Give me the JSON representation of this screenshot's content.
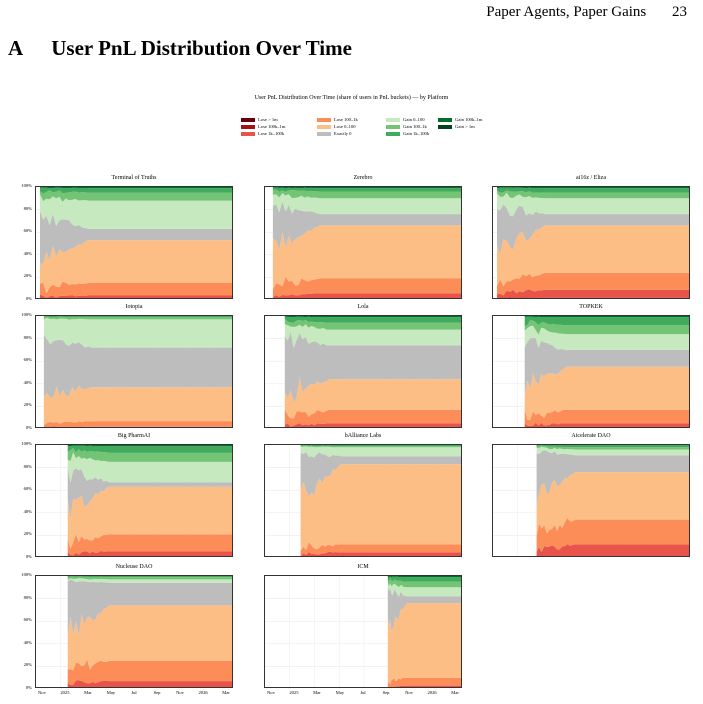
{
  "header": {
    "running_title": "Paper Agents, Paper Gains",
    "page_number": "23"
  },
  "section": {
    "letter": "A",
    "title": "User PnL Distribution Over Time"
  },
  "figure": {
    "title": "User PnL Distribution Over Time (share of users in PnL buckets) — by Platform"
  },
  "legend": {
    "items": [
      {
        "label": "Lose > 1m",
        "color": "#67000d"
      },
      {
        "label": "Lose 100k–1m",
        "color": "#a50f15"
      },
      {
        "label": "Lose 1k–100k",
        "color": "#e8534a"
      },
      {
        "label": "Lose 100–1k",
        "color": "#fc8d59"
      },
      {
        "label": "Lose 0–100",
        "color": "#fdbe85"
      },
      {
        "label": "Exactly 0",
        "color": "#bdbdbd"
      },
      {
        "label": "Gain 0–100",
        "color": "#c7e9c0"
      },
      {
        "label": "Gain 100–1k",
        "color": "#74c476"
      },
      {
        "label": "Gain 1k–100k",
        "color": "#41ab5d"
      },
      {
        "label": "Gain 100k–1m",
        "color": "#006d2c"
      },
      {
        "label": "Gain > 1m",
        "color": "#00441b"
      }
    ]
  },
  "chart_data": {
    "type": "area",
    "x_ticks": [
      "Nov",
      "2025",
      "Mar",
      "May",
      "Jul",
      "Sep",
      "Nov",
      "2026",
      "Mar"
    ],
    "y_ticks": [
      "0%",
      "20%",
      "40%",
      "60%",
      "80%",
      "100%"
    ],
    "ylim": [
      0,
      100
    ],
    "buckets": [
      "Lose > 1m",
      "Lose 100k–1m",
      "Lose 1k–100k",
      "Lose 100–1k",
      "Lose 0–100",
      "Exactly 0",
      "Gain 0–100",
      "Gain 100–1k",
      "Gain 1k–100k",
      "Gain 100k–1m",
      "Gain > 1m"
    ],
    "panels": [
      {
        "title": "Terminal of Truths",
        "start": 0.02,
        "end": 0.9,
        "shares": [
          0,
          1,
          3,
          11,
          38,
          10,
          25,
          7,
          4,
          1,
          0
        ]
      },
      {
        "title": "Zerebro",
        "start": 0.04,
        "end": 0.9,
        "shares": [
          0,
          1,
          5,
          13,
          47,
          10,
          14,
          6,
          3,
          1,
          0
        ]
      },
      {
        "title": "ai16z / Eliza",
        "start": 0.02,
        "end": 0.9,
        "shares": [
          0,
          2,
          7,
          15,
          42,
          10,
          14,
          5,
          4,
          1,
          0
        ]
      },
      {
        "title": "Iotopia",
        "start": 0.04,
        "end": 0.9,
        "shares": [
          0,
          0,
          2,
          5,
          30,
          35,
          25,
          2,
          1,
          0,
          0
        ]
      },
      {
        "title": "Lola",
        "start": 0.1,
        "end": 0.9,
        "shares": [
          0,
          0,
          5,
          12,
          27,
          30,
          14,
          6,
          5,
          1,
          0
        ]
      },
      {
        "title": "TOPKEK",
        "start": 0.16,
        "end": 0.9,
        "shares": [
          0,
          0,
          5,
          12,
          38,
          15,
          14,
          8,
          7,
          1,
          0
        ]
      },
      {
        "title": "Big PharmAI",
        "start": 0.16,
        "end": 0.9,
        "shares": [
          0,
          0,
          6,
          15,
          42,
          4,
          18,
          8,
          6,
          1,
          0
        ]
      },
      {
        "title": "bAlliance Labs",
        "start": 0.18,
        "end": 0.9,
        "shares": [
          0,
          0,
          5,
          7,
          71,
          7,
          8,
          1,
          1,
          0,
          0
        ]
      },
      {
        "title": "Aicelerate DAO",
        "start": 0.22,
        "end": 0.9,
        "shares": [
          0,
          0,
          12,
          22,
          42,
          15,
          5,
          2,
          2,
          0,
          0
        ]
      },
      {
        "title": "Nucleuse DAO",
        "start": 0.16,
        "end": 0.9,
        "shares": [
          0,
          0,
          7,
          18,
          49,
          20,
          3,
          2,
          1,
          0,
          0
        ]
      },
      {
        "title": "ICM",
        "start": 0.62,
        "end": 0.9,
        "shares": [
          0,
          0,
          3,
          7,
          66,
          6,
          8,
          5,
          4,
          1,
          0
        ]
      }
    ]
  }
}
